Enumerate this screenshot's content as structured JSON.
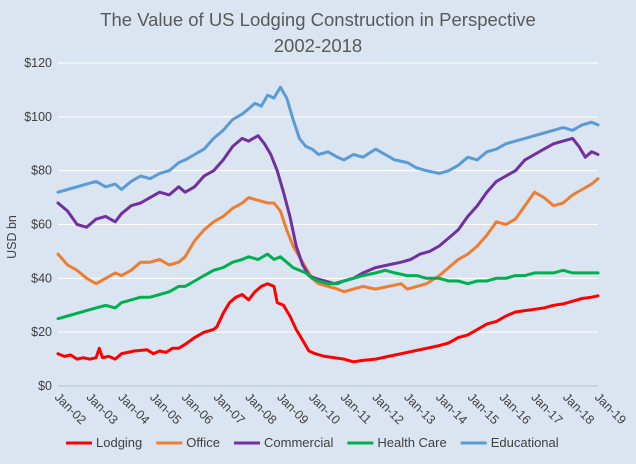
{
  "chart_data": {
    "type": "line",
    "title": "The Value of US Lodging Construction in Perspective",
    "subtitle": "2002-2018",
    "xlabel": "",
    "ylabel": "USD bn",
    "ylim": [
      0,
      120
    ],
    "yticks": [
      0,
      20,
      40,
      60,
      80,
      100,
      120
    ],
    "ytick_labels": [
      "$0",
      "$20",
      "$40",
      "$60",
      "$80",
      "$100",
      "$120"
    ],
    "xlim": [
      2002.0,
      2019.0
    ],
    "xticks": [
      2002,
      2003,
      2004,
      2005,
      2006,
      2007,
      2008,
      2009,
      2010,
      2011,
      2012,
      2013,
      2014,
      2015,
      2016,
      2017,
      2018,
      2019
    ],
    "xtick_labels": [
      "Jan-02",
      "Jan-03",
      "Jan-04",
      "Jan-05",
      "Jan-06",
      "Jan-07",
      "Jan-08",
      "Jan-09",
      "Jan-10",
      "Jan-11",
      "Jan-12",
      "Jan-13",
      "Jan-14",
      "Jan-15",
      "Jan-16",
      "Jan-17",
      "Jan-18",
      "Jan-19"
    ],
    "grid": true,
    "legend": "bottom",
    "series": [
      {
        "name": "Lodging",
        "color": "#ff0000",
        "x": [
          2002.0,
          2002.2,
          2002.4,
          2002.6,
          2002.8,
          2003.0,
          2003.2,
          2003.3,
          2003.4,
          2003.6,
          2003.8,
          2004.0,
          2004.4,
          2004.8,
          2005.0,
          2005.2,
          2005.4,
          2005.6,
          2005.8,
          2006.0,
          2006.3,
          2006.6,
          2006.9,
          2007.0,
          2007.2,
          2007.4,
          2007.6,
          2007.8,
          2008.0,
          2008.2,
          2008.4,
          2008.6,
          2008.8,
          2008.9,
          2009.1,
          2009.3,
          2009.5,
          2009.7,
          2009.9,
          2010.1,
          2010.4,
          2010.7,
          2011.0,
          2011.3,
          2011.6,
          2012.0,
          2012.4,
          2012.8,
          2013.2,
          2013.6,
          2014.0,
          2014.3,
          2014.6,
          2014.9,
          2015.2,
          2015.5,
          2015.8,
          2016.1,
          2016.4,
          2016.7,
          2017.0,
          2017.3,
          2017.6,
          2017.9,
          2018.2,
          2018.5,
          2018.8,
          2019.0
        ],
        "values": [
          12,
          11,
          11.5,
          10,
          10.5,
          10,
          10.5,
          14,
          10.5,
          11,
          10,
          12,
          13,
          13.5,
          12,
          13,
          12.5,
          14,
          14,
          15.5,
          18,
          20,
          21,
          22,
          27,
          31,
          33,
          34,
          32,
          35,
          37,
          38,
          37,
          31,
          30,
          26,
          21,
          17,
          13,
          12,
          11,
          10.5,
          10,
          9,
          9.5,
          10,
          11,
          12,
          13,
          14,
          15,
          16,
          18,
          19,
          21,
          23,
          24,
          26,
          27.5,
          28,
          28.5,
          29,
          30,
          30.5,
          31.5,
          32.5,
          33,
          33.5
        ]
      },
      {
        "name": "Office",
        "color": "#ed7d31",
        "x": [
          2002.0,
          2002.3,
          2002.6,
          2002.9,
          2003.2,
          2003.5,
          2003.8,
          2004.0,
          2004.3,
          2004.6,
          2004.9,
          2005.2,
          2005.5,
          2005.8,
          2006.0,
          2006.3,
          2006.6,
          2006.9,
          2007.2,
          2007.5,
          2007.8,
          2008.0,
          2008.3,
          2008.6,
          2008.8,
          2009.0,
          2009.2,
          2009.4,
          2009.6,
          2009.8,
          2010.0,
          2010.2,
          2010.5,
          2010.8,
          2011.0,
          2011.3,
          2011.6,
          2012.0,
          2012.4,
          2012.8,
          2013.0,
          2013.3,
          2013.6,
          2014.0,
          2014.3,
          2014.6,
          2014.9,
          2015.2,
          2015.5,
          2015.8,
          2016.1,
          2016.4,
          2016.7,
          2017.0,
          2017.3,
          2017.6,
          2017.9,
          2018.2,
          2018.5,
          2018.8,
          2019.0
        ],
        "values": [
          49,
          45,
          43,
          40,
          38,
          40,
          42,
          41,
          43,
          46,
          46,
          47,
          45,
          46,
          48,
          54,
          58,
          61,
          63,
          66,
          68,
          70,
          69,
          68,
          68,
          65,
          58,
          52,
          48,
          44,
          40,
          38,
          37,
          36,
          35,
          36,
          37,
          36,
          37,
          38,
          36,
          37,
          38,
          41,
          44,
          47,
          49,
          52,
          56,
          61,
          60,
          62,
          67,
          72,
          70,
          67,
          68,
          71,
          73,
          75,
          77
        ]
      },
      {
        "name": "Commercial",
        "color": "#7030a0",
        "x": [
          2002.0,
          2002.3,
          2002.6,
          2002.9,
          2003.2,
          2003.5,
          2003.8,
          2004.0,
          2004.3,
          2004.6,
          2004.9,
          2005.2,
          2005.5,
          2005.8,
          2006.0,
          2006.3,
          2006.6,
          2006.9,
          2007.2,
          2007.5,
          2007.8,
          2008.0,
          2008.3,
          2008.5,
          2008.7,
          2008.9,
          2009.1,
          2009.3,
          2009.5,
          2009.7,
          2009.9,
          2010.1,
          2010.4,
          2010.7,
          2011.0,
          2011.3,
          2011.6,
          2012.0,
          2012.4,
          2012.8,
          2013.1,
          2013.4,
          2013.7,
          2014.0,
          2014.3,
          2014.6,
          2014.9,
          2015.2,
          2015.5,
          2015.8,
          2016.1,
          2016.4,
          2016.7,
          2017.0,
          2017.3,
          2017.6,
          2017.9,
          2018.2,
          2018.4,
          2018.6,
          2018.8,
          2019.0
        ],
        "values": [
          68,
          65,
          60,
          59,
          62,
          63,
          61,
          64,
          67,
          68,
          70,
          72,
          71,
          74,
          72,
          74,
          78,
          80,
          84,
          89,
          92,
          91,
          93,
          90,
          86,
          80,
          72,
          63,
          52,
          45,
          41,
          40,
          39,
          38,
          39,
          40,
          42,
          44,
          45,
          46,
          47,
          49,
          50,
          52,
          55,
          58,
          63,
          67,
          72,
          76,
          78,
          80,
          84,
          86,
          88,
          90,
          91,
          92,
          89,
          85,
          87,
          86
        ]
      },
      {
        "name": "Health Care",
        "color": "#00b050",
        "x": [
          2002.0,
          2002.3,
          2002.6,
          2002.9,
          2003.2,
          2003.5,
          2003.8,
          2004.0,
          2004.3,
          2004.6,
          2004.9,
          2005.2,
          2005.5,
          2005.8,
          2006.0,
          2006.3,
          2006.6,
          2006.9,
          2007.2,
          2007.5,
          2007.8,
          2008.0,
          2008.3,
          2008.6,
          2008.8,
          2009.0,
          2009.2,
          2009.4,
          2009.6,
          2009.8,
          2010.0,
          2010.2,
          2010.5,
          2010.8,
          2011.0,
          2011.3,
          2011.6,
          2012.0,
          2012.3,
          2012.6,
          2013.0,
          2013.3,
          2013.6,
          2014.0,
          2014.3,
          2014.6,
          2014.9,
          2015.2,
          2015.5,
          2015.8,
          2016.1,
          2016.4,
          2016.7,
          2017.0,
          2017.3,
          2017.6,
          2017.9,
          2018.2,
          2018.5,
          2018.8,
          2019.0
        ],
        "values": [
          25,
          26,
          27,
          28,
          29,
          30,
          29,
          31,
          32,
          33,
          33,
          34,
          35,
          37,
          37,
          39,
          41,
          43,
          44,
          46,
          47,
          48,
          47,
          49,
          47,
          48,
          46,
          44,
          43,
          42,
          40,
          39,
          38,
          38,
          39,
          40,
          41,
          42,
          43,
          42,
          41,
          41,
          40,
          40,
          39,
          39,
          38,
          39,
          39,
          40,
          40,
          41,
          41,
          42,
          42,
          42,
          43,
          42,
          42,
          42,
          42
        ]
      },
      {
        "name": "Educational",
        "color": "#5b9bd5",
        "x": [
          2002.0,
          2002.3,
          2002.6,
          2002.9,
          2003.2,
          2003.5,
          2003.8,
          2004.0,
          2004.3,
          2004.6,
          2004.9,
          2005.2,
          2005.5,
          2005.8,
          2006.0,
          2006.3,
          2006.6,
          2006.9,
          2007.2,
          2007.5,
          2007.8,
          2008.0,
          2008.2,
          2008.4,
          2008.6,
          2008.8,
          2009.0,
          2009.2,
          2009.4,
          2009.6,
          2009.8,
          2010.0,
          2010.2,
          2010.5,
          2010.8,
          2011.0,
          2011.3,
          2011.6,
          2012.0,
          2012.3,
          2012.6,
          2013.0,
          2013.3,
          2013.6,
          2014.0,
          2014.3,
          2014.6,
          2014.9,
          2015.2,
          2015.5,
          2015.8,
          2016.1,
          2016.4,
          2016.7,
          2017.0,
          2017.3,
          2017.6,
          2017.9,
          2018.2,
          2018.5,
          2018.8,
          2019.0
        ],
        "values": [
          72,
          73,
          74,
          75,
          76,
          74,
          75,
          73,
          76,
          78,
          77,
          79,
          80,
          83,
          84,
          86,
          88,
          92,
          95,
          99,
          101,
          103,
          105,
          104,
          108,
          107,
          111,
          107,
          99,
          92,
          89,
          88,
          86,
          87,
          85,
          84,
          86,
          85,
          88,
          86,
          84,
          83,
          81,
          80,
          79,
          80,
          82,
          85,
          84,
          87,
          88,
          90,
          91,
          92,
          93,
          94,
          95,
          96,
          95,
          97,
          98,
          97
        ]
      }
    ]
  }
}
